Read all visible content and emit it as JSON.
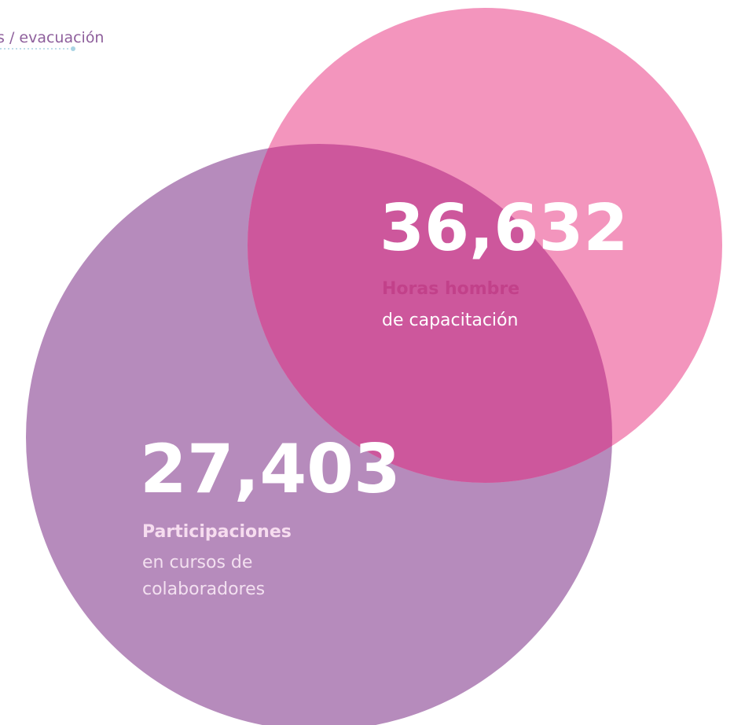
{
  "header": {
    "title": "s / evacuación"
  },
  "stats": [
    {
      "value": "36,632",
      "label": "Horas hombre",
      "description": [
        "de capacitación"
      ]
    },
    {
      "value": "27,403",
      "label": "Participaciones",
      "description": [
        "en cursos de",
        "colaboradores"
      ]
    }
  ]
}
